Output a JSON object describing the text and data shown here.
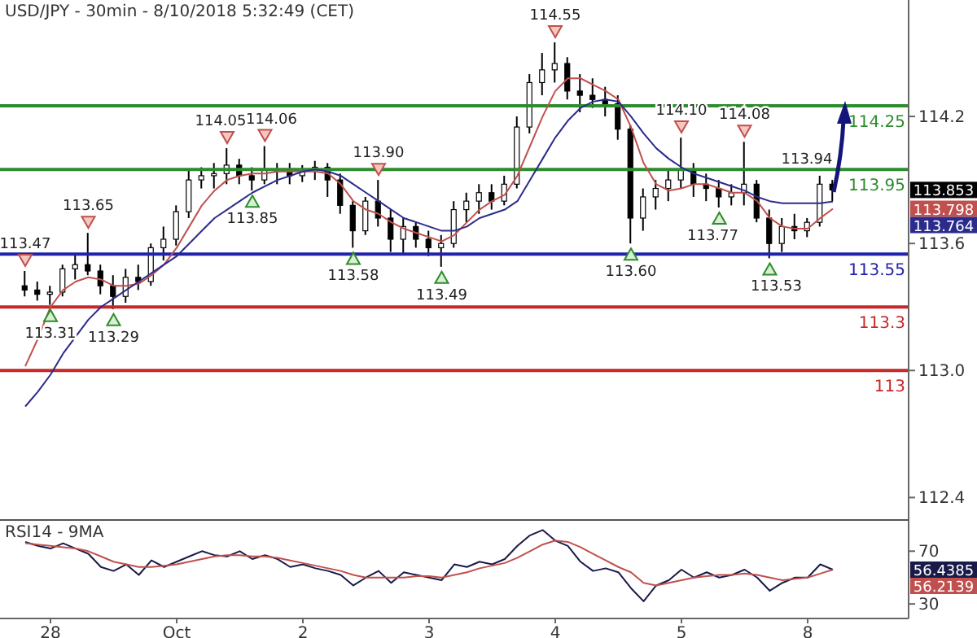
{
  "chart_data": [
    {
      "type": "candlestick",
      "title": "USD/JPY - 30min - 8/10/2018 5:32:49 (CET)",
      "color": "#000000",
      "categories": [
        null,
        null,
        null,
        null,
        null,
        null,
        null,
        null,
        null,
        null,
        null,
        null,
        null,
        null,
        null,
        null,
        null,
        null,
        null,
        null,
        null,
        null,
        null,
        null,
        null,
        null,
        null,
        null,
        null,
        null,
        null,
        null,
        null,
        null,
        null,
        null,
        null,
        null,
        null,
        null,
        null,
        null,
        null,
        null,
        null,
        null,
        null,
        null,
        null,
        null,
        null,
        null,
        null,
        null,
        null,
        null,
        null,
        null,
        null,
        null,
        null,
        null,
        null,
        null,
        null
      ],
      "ohlc": [
        [
          113.4,
          113.47,
          113.35,
          113.38
        ],
        [
          113.38,
          113.42,
          113.33,
          113.36
        ],
        [
          113.36,
          113.4,
          113.31,
          113.37
        ],
        [
          113.37,
          113.5,
          113.35,
          113.48
        ],
        [
          113.48,
          113.55,
          113.43,
          113.5
        ],
        [
          113.5,
          113.65,
          113.45,
          113.47
        ],
        [
          113.47,
          113.5,
          113.36,
          113.4
        ],
        [
          113.4,
          113.45,
          113.29,
          113.35
        ],
        [
          113.35,
          113.48,
          113.32,
          113.44
        ],
        [
          113.44,
          113.5,
          113.38,
          113.42
        ],
        [
          113.42,
          113.6,
          113.4,
          113.58
        ],
        [
          113.58,
          113.68,
          113.52,
          113.62
        ],
        [
          113.62,
          113.78,
          113.59,
          113.75
        ],
        [
          113.75,
          113.95,
          113.72,
          113.9
        ],
        [
          113.9,
          113.96,
          113.86,
          113.92
        ],
        [
          113.92,
          113.98,
          113.86,
          113.93
        ],
        [
          113.93,
          114.05,
          113.88,
          113.97
        ],
        [
          113.97,
          114.0,
          113.88,
          113.92
        ],
        [
          113.92,
          113.96,
          113.85,
          113.9
        ],
        [
          113.9,
          114.06,
          113.88,
          113.95
        ],
        [
          113.95,
          113.98,
          113.88,
          113.94
        ],
        [
          113.94,
          113.98,
          113.88,
          113.92
        ],
        [
          113.92,
          113.97,
          113.89,
          113.95
        ],
        [
          113.95,
          113.99,
          113.9,
          113.96
        ],
        [
          113.96,
          113.98,
          113.82,
          113.9
        ],
        [
          113.9,
          113.93,
          113.74,
          113.78
        ],
        [
          113.78,
          113.8,
          113.58,
          113.66
        ],
        [
          113.66,
          113.82,
          113.64,
          113.8
        ],
        [
          113.8,
          113.9,
          113.68,
          113.72
        ],
        [
          113.72,
          113.76,
          113.56,
          113.62
        ],
        [
          113.62,
          113.72,
          113.55,
          113.68
        ],
        [
          113.68,
          113.7,
          113.58,
          113.62
        ],
        [
          113.62,
          113.66,
          113.54,
          113.58
        ],
        [
          113.58,
          113.64,
          113.49,
          113.6
        ],
        [
          113.6,
          113.8,
          113.58,
          113.76
        ],
        [
          113.76,
          113.84,
          113.7,
          113.8
        ],
        [
          113.8,
          113.88,
          113.74,
          113.84
        ],
        [
          113.84,
          113.88,
          113.76,
          113.8
        ],
        [
          113.8,
          113.92,
          113.78,
          113.88
        ],
        [
          113.88,
          114.2,
          113.86,
          114.15
        ],
        [
          114.15,
          114.4,
          114.12,
          114.36
        ],
        [
          114.36,
          114.5,
          114.3,
          114.42
        ],
        [
          114.42,
          114.55,
          114.36,
          114.45
        ],
        [
          114.45,
          114.48,
          114.28,
          114.32
        ],
        [
          114.32,
          114.4,
          114.22,
          114.3
        ],
        [
          114.3,
          114.38,
          114.24,
          114.28
        ],
        [
          114.28,
          114.34,
          114.2,
          114.26
        ],
        [
          114.26,
          114.3,
          114.09,
          114.14
        ],
        [
          114.14,
          114.16,
          113.6,
          113.72
        ],
        [
          113.72,
          113.86,
          113.66,
          113.82
        ],
        [
          113.82,
          113.9,
          113.76,
          113.86
        ],
        [
          113.86,
          113.95,
          113.8,
          113.9
        ],
        [
          113.9,
          114.1,
          113.86,
          113.95
        ],
        [
          113.95,
          113.98,
          113.82,
          113.88
        ],
        [
          113.88,
          113.93,
          113.8,
          113.86
        ],
        [
          113.86,
          113.9,
          113.77,
          113.82
        ],
        [
          113.82,
          113.88,
          113.78,
          113.84
        ],
        [
          113.84,
          114.08,
          113.78,
          113.88
        ],
        [
          113.88,
          113.9,
          113.7,
          113.72
        ],
        [
          113.72,
          113.76,
          113.53,
          113.6
        ],
        [
          113.6,
          113.72,
          113.56,
          113.68
        ],
        [
          113.68,
          113.74,
          113.62,
          113.66
        ],
        [
          113.66,
          113.72,
          113.63,
          113.7
        ],
        [
          113.7,
          113.92,
          113.68,
          113.88
        ],
        [
          113.88,
          113.9,
          113.8,
          113.853
        ]
      ],
      "series": [
        {
          "type": "line",
          "color": "#c0504d",
          "values": [
            113.02,
            113.15,
            113.3,
            113.38,
            113.42,
            113.44,
            113.43,
            113.4,
            113.4,
            113.41,
            113.45,
            113.5,
            113.58,
            113.68,
            113.78,
            113.85,
            113.9,
            113.92,
            113.93,
            113.93,
            113.94,
            113.94,
            113.94,
            113.94,
            113.93,
            113.88,
            113.8,
            113.76,
            113.74,
            113.7,
            113.67,
            113.65,
            113.63,
            113.61,
            113.64,
            113.7,
            113.76,
            113.8,
            113.83,
            113.92,
            114.06,
            114.2,
            114.32,
            114.38,
            114.38,
            114.35,
            114.32,
            114.28,
            114.15,
            113.98,
            113.88,
            113.85,
            113.86,
            113.88,
            113.88,
            113.86,
            113.84,
            113.84,
            113.8,
            113.72,
            113.68,
            113.67,
            113.67,
            113.72,
            113.764
          ]
        },
        {
          "type": "line",
          "color": "#2b2b8c",
          "values": [
            112.83,
            112.9,
            112.98,
            113.08,
            113.16,
            113.24,
            113.3,
            113.34,
            113.38,
            113.42,
            113.46,
            113.5,
            113.54,
            113.6,
            113.66,
            113.72,
            113.76,
            113.8,
            113.84,
            113.87,
            113.9,
            113.92,
            113.94,
            113.95,
            113.94,
            113.92,
            113.88,
            113.84,
            113.8,
            113.76,
            113.72,
            113.7,
            113.68,
            113.66,
            113.66,
            113.68,
            113.72,
            113.74,
            113.76,
            113.8,
            113.9,
            114.0,
            114.1,
            114.18,
            114.24,
            114.27,
            114.28,
            114.27,
            114.2,
            114.12,
            114.05,
            114.0,
            113.96,
            113.93,
            113.91,
            113.89,
            113.87,
            113.85,
            113.82,
            113.8,
            113.79,
            113.79,
            113.79,
            113.79,
            113.798
          ]
        }
      ],
      "ylim": [
        112.29,
        114.75
      ],
      "yticks": [
        {
          "value": 114.2,
          "label": "114.2"
        },
        {
          "value": 113.6,
          "label": "113.6"
        },
        {
          "value": 113.0,
          "label": "113.0"
        },
        {
          "value": 112.4,
          "label": "112.4"
        }
      ],
      "tick_labels": "y",
      "ref_lines": [
        {
          "axis": "y",
          "value": 114.25,
          "label": "114.25",
          "color": "#2e8b2e"
        },
        {
          "axis": "y",
          "value": 113.95,
          "label": "113.95",
          "color": "#2e8b2e"
        },
        {
          "axis": "y",
          "value": 113.55,
          "label": "113.55",
          "color": "#2222aa"
        },
        {
          "axis": "y",
          "value": 113.3,
          "label": "113.3",
          "color": "#c62828"
        },
        {
          "axis": "y",
          "value": 113,
          "label": "113",
          "color": "#c62828"
        }
      ],
      "annotations": [
        {
          "text": "113.47",
          "y": 113.47
        },
        {
          "text": "113.31",
          "y": 113.31
        },
        {
          "text": "113.65",
          "y": 113.65
        },
        {
          "text": "113.29",
          "y": 113.29
        },
        {
          "text": "114.05",
          "y": 114.05
        },
        {
          "text": "113.85",
          "y": 113.85
        },
        {
          "text": "114.06",
          "y": 114.06
        },
        {
          "text": "113.58",
          "y": 113.58
        },
        {
          "text": "113.90",
          "y": 113.9
        },
        {
          "text": "113.49",
          "y": 113.49
        },
        {
          "text": "114.55",
          "y": 114.55
        },
        {
          "text": "113.60",
          "y": 113.6
        },
        {
          "text": "114.10",
          "y": 114.1
        },
        {
          "text": "113.77",
          "y": 113.77
        },
        {
          "text": "114.08",
          "y": 114.08
        },
        {
          "text": "113.53",
          "y": 113.53
        },
        {
          "text": "113.94",
          "y": 113.94
        },
        "113.853",
        "113.798",
        "113.764"
      ]
    },
    {
      "type": "line",
      "title": "RSI14 - 9MA",
      "categories": [
        null,
        null,
        "28",
        null,
        null,
        null,
        null,
        null,
        null,
        null,
        null,
        null,
        "Oct",
        null,
        null,
        null,
        null,
        null,
        null,
        null,
        null,
        null,
        "2",
        null,
        null,
        null,
        null,
        null,
        null,
        null,
        null,
        null,
        "3",
        null,
        null,
        null,
        null,
        null,
        null,
        null,
        null,
        null,
        "4",
        null,
        null,
        null,
        null,
        null,
        null,
        null,
        null,
        null,
        "5",
        null,
        null,
        null,
        null,
        null,
        null,
        null,
        null,
        null,
        "8",
        null,
        null
      ],
      "series": [
        {
          "color": "#1a1a4a",
          "values": [
            77,
            74,
            72,
            76,
            72,
            68,
            58,
            55,
            60,
            52,
            63,
            58,
            62,
            66,
            70,
            67,
            66,
            70,
            64,
            67,
            64,
            58,
            60,
            57,
            55,
            52,
            44,
            50,
            55,
            46,
            54,
            52,
            50,
            48,
            60,
            58,
            62,
            60,
            64,
            74,
            82,
            86,
            78,
            74,
            62,
            55,
            57,
            54,
            42,
            32,
            44,
            48,
            56,
            50,
            54,
            50,
            52,
            56,
            50,
            40,
            46,
            50,
            50,
            60,
            56
          ]
        },
        {
          "color": "#c0504d",
          "values": [
            76,
            75,
            74,
            73,
            72,
            70,
            66,
            62,
            60,
            58,
            58,
            59,
            60,
            62,
            64,
            66,
            67,
            67,
            66,
            66,
            65,
            63,
            61,
            59,
            57,
            55,
            52,
            50,
            50,
            50,
            50,
            51,
            51,
            50,
            52,
            54,
            57,
            59,
            61,
            65,
            70,
            75,
            78,
            77,
            73,
            68,
            63,
            58,
            54,
            46,
            44,
            46,
            48,
            50,
            51,
            52,
            52,
            53,
            52,
            50,
            48,
            49,
            50,
            53,
            56
          ]
        }
      ],
      "ylim": [
        19,
        93
      ],
      "yticks": [
        30,
        70
      ],
      "annotations": [
        "56.4385",
        "56.2139"
      ]
    }
  ]
}
